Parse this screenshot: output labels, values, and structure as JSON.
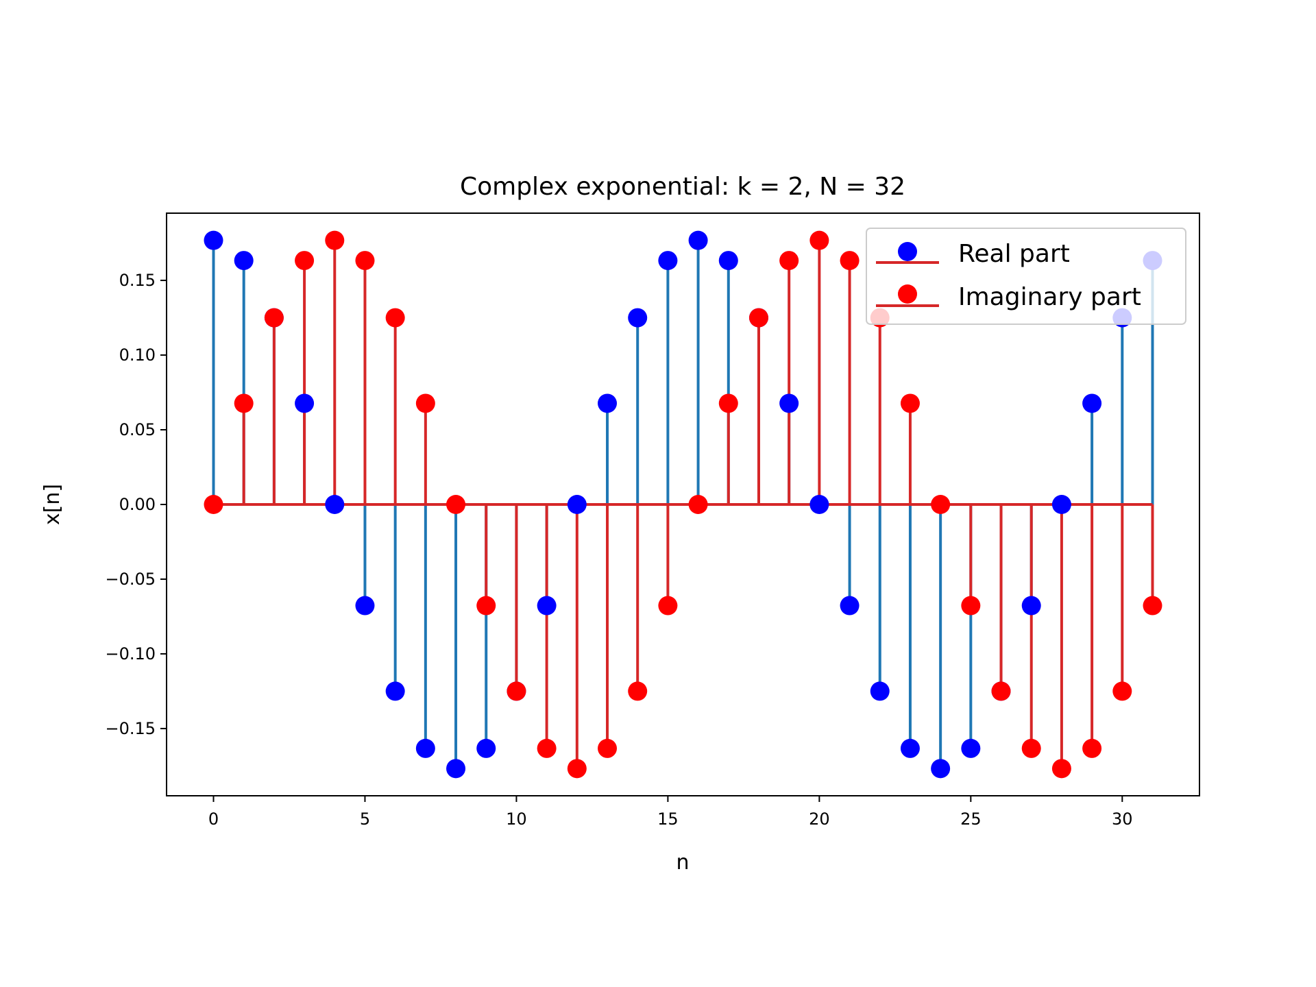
{
  "chart_data": {
    "type": "stem",
    "title": "Complex exponential: k = 2, N = 32",
    "xlabel": "n",
    "ylabel": "x[n]",
    "xlim": [
      -1.55,
      32.55
    ],
    "ylim": [
      -0.195,
      0.195
    ],
    "xticks": [
      0,
      5,
      10,
      15,
      20,
      25,
      30
    ],
    "xtick_labels": [
      "0",
      "5",
      "10",
      "15",
      "20",
      "25",
      "30"
    ],
    "yticks": [
      0.15,
      0.1,
      0.05,
      0.0,
      -0.05,
      -0.1,
      -0.15
    ],
    "ytick_labels": [
      "0.15",
      "0.10",
      "0.05",
      "0.00",
      "−0.05",
      "−0.10",
      "−0.15"
    ],
    "x": [
      0,
      1,
      2,
      3,
      4,
      5,
      6,
      7,
      8,
      9,
      10,
      11,
      12,
      13,
      14,
      15,
      16,
      17,
      18,
      19,
      20,
      21,
      22,
      23,
      24,
      25,
      26,
      27,
      28,
      29,
      30,
      31
    ],
    "series": [
      {
        "name": "Real part",
        "marker_color": "#0000ff",
        "stem_color": "#1f77b4",
        "baseline_color": "#d62728",
        "values": [
          0.1768,
          0.1633,
          0.125,
          0.0677,
          0.0,
          -0.0677,
          -0.125,
          -0.1633,
          -0.1768,
          -0.1633,
          -0.125,
          -0.0677,
          0.0,
          0.0677,
          0.125,
          0.1633,
          0.1768,
          0.1633,
          0.125,
          0.0677,
          0.0,
          -0.0677,
          -0.125,
          -0.1633,
          -0.1768,
          -0.1633,
          -0.125,
          -0.0677,
          0.0,
          0.0677,
          0.125,
          0.1633
        ]
      },
      {
        "name": "Imaginary part",
        "marker_color": "#ff0000",
        "stem_color": "#d62728",
        "baseline_color": "#d62728",
        "values": [
          0.0,
          0.0677,
          0.125,
          0.1633,
          0.1768,
          0.1633,
          0.125,
          0.0677,
          0.0,
          -0.0677,
          -0.125,
          -0.1633,
          -0.1768,
          -0.1633,
          -0.125,
          -0.0677,
          0.0,
          0.0677,
          0.125,
          0.1633,
          0.1768,
          0.1633,
          0.125,
          0.0677,
          0.0,
          -0.0677,
          -0.125,
          -0.1633,
          -0.1768,
          -0.1633,
          -0.125,
          -0.0677
        ]
      }
    ],
    "legend": {
      "placement": "top-right",
      "entries": [
        "Real part",
        "Imaginary part"
      ]
    },
    "grid": false
  }
}
